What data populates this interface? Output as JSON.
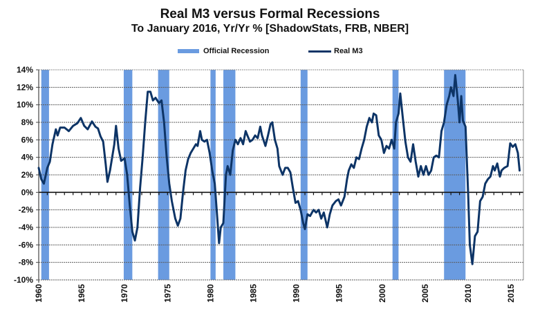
{
  "chart_data": {
    "type": "line",
    "title": "Real M3 versus Formal Recessions",
    "subtitle": "To January 2016, Yr/Yr % [ShadowStats, FRB, NBER]",
    "xlabel": "",
    "ylabel": "",
    "xlim": [
      1960,
      2016.2
    ],
    "ylim": [
      -10,
      14
    ],
    "y_ticks": [
      "-10%",
      "-8%",
      "-6%",
      "-4%",
      "-2%",
      "0%",
      "2%",
      "4%",
      "6%",
      "8%",
      "10%",
      "12%",
      "14%"
    ],
    "y_tick_values": [
      -10,
      -8,
      -6,
      -4,
      -2,
      0,
      2,
      4,
      6,
      8,
      10,
      12,
      14
    ],
    "x_ticks": [
      "1960",
      "1965",
      "1970",
      "1975",
      "1980",
      "1985",
      "1990",
      "1995",
      "2000",
      "2005",
      "2010",
      "2015"
    ],
    "x_tick_values": [
      1960,
      1965,
      1970,
      1975,
      1980,
      1985,
      1990,
      1995,
      2000,
      2005,
      2010,
      2015
    ],
    "grid": true,
    "legend": {
      "position": "top-center",
      "entries": [
        {
          "label": "Official Recession",
          "type": "band",
          "color": "#6a9be0"
        },
        {
          "label": "Real M3",
          "type": "line",
          "color": "#0d3466"
        }
      ]
    },
    "recessions": [
      {
        "start": 1960.3,
        "end": 1961.2
      },
      {
        "start": 1969.9,
        "end": 1970.9
      },
      {
        "start": 1973.9,
        "end": 1975.2
      },
      {
        "start": 1980.0,
        "end": 1980.6
      },
      {
        "start": 1981.5,
        "end": 1982.9
      },
      {
        "start": 1990.5,
        "end": 1991.3
      },
      {
        "start": 2001.2,
        "end": 2001.9
      },
      {
        "start": 2007.2,
        "end": 2009.7
      }
    ],
    "series": [
      {
        "name": "Real M3",
        "color": "#0d3466",
        "x": [
          1960.0,
          1960.3,
          1960.6,
          1961.0,
          1961.3,
          1961.6,
          1962.0,
          1962.2,
          1962.5,
          1963.0,
          1963.5,
          1964.0,
          1964.5,
          1964.9,
          1965.3,
          1965.7,
          1966.2,
          1966.6,
          1966.9,
          1967.2,
          1967.5,
          1967.8,
          1968.0,
          1968.3,
          1968.8,
          1969.0,
          1969.3,
          1969.6,
          1970.0,
          1970.3,
          1970.6,
          1970.9,
          1971.2,
          1971.5,
          1971.8,
          1972.1,
          1972.4,
          1972.7,
          1973.0,
          1973.3,
          1973.6,
          1974.0,
          1974.3,
          1974.6,
          1974.9,
          1975.2,
          1975.5,
          1975.9,
          1976.2,
          1976.5,
          1976.8,
          1977.1,
          1977.4,
          1977.7,
          1978.0,
          1978.3,
          1978.5,
          1978.8,
          1979.0,
          1979.3,
          1979.6,
          1979.9,
          1980.2,
          1980.5,
          1980.8,
          1981.0,
          1981.2,
          1981.5,
          1981.8,
          1982.0,
          1982.3,
          1982.6,
          1982.9,
          1983.2,
          1983.5,
          1983.8,
          1984.1,
          1984.3,
          1984.6,
          1984.9,
          1985.2,
          1985.5,
          1985.8,
          1986.0,
          1986.4,
          1986.7,
          1987.0,
          1987.2,
          1987.5,
          1987.8,
          1988.0,
          1988.4,
          1988.7,
          1989.0,
          1989.3,
          1989.6,
          1989.9,
          1990.2,
          1990.5,
          1990.8,
          1991.0,
          1991.3,
          1991.6,
          1992.0,
          1992.3,
          1992.6,
          1992.9,
          1993.2,
          1993.6,
          1993.9,
          1994.2,
          1994.6,
          1994.9,
          1995.2,
          1995.6,
          1995.9,
          1996.1,
          1996.4,
          1996.7,
          1997.0,
          1997.3,
          1997.6,
          1997.9,
          1998.2,
          1998.5,
          1998.8,
          1999.0,
          1999.3,
          1999.6,
          1999.9,
          2000.2,
          2000.5,
          2000.8,
          2001.1,
          2001.4,
          2001.6,
          2001.9,
          2002.1,
          2002.4,
          2002.7,
          2003.0,
          2003.3,
          2003.6,
          2003.9,
          2004.2,
          2004.5,
          2004.8,
          2005.1,
          2005.4,
          2005.7,
          2006.0,
          2006.3,
          2006.6,
          2006.9,
          2007.2,
          2007.5,
          2007.8,
          2008.0,
          2008.3,
          2008.5,
          2008.8,
          2009.0,
          2009.2,
          2009.4,
          2009.7,
          2010.0,
          2010.2,
          2010.5,
          2010.8,
          2011.1,
          2011.4,
          2011.7,
          2012.0,
          2012.3,
          2012.6,
          2012.9,
          2013.1,
          2013.4,
          2013.7,
          2013.9,
          2014.2,
          2014.6,
          2014.9,
          2015.2,
          2015.5,
          2015.8,
          2016.0
        ],
        "values": [
          2.8,
          1.5,
          1.0,
          2.8,
          3.5,
          5.5,
          7.2,
          6.5,
          7.4,
          7.4,
          7.0,
          7.6,
          7.9,
          8.5,
          7.6,
          7.2,
          8.1,
          7.5,
          7.3,
          6.4,
          5.8,
          3.2,
          1.2,
          2.5,
          5.5,
          7.6,
          5.0,
          3.6,
          3.9,
          2.0,
          -1.5,
          -4.5,
          -5.5,
          -4.0,
          0.5,
          4.0,
          8.0,
          11.5,
          11.5,
          10.5,
          10.8,
          10.2,
          10.5,
          8.0,
          4.0,
          1.0,
          -1.0,
          -3.0,
          -3.8,
          -3.0,
          0.0,
          2.5,
          3.8,
          4.5,
          5.0,
          5.5,
          5.3,
          7.0,
          6.0,
          5.8,
          6.0,
          4.5,
          2.5,
          1.0,
          -3.0,
          -5.8,
          -4.0,
          -3.5,
          2.0,
          3.0,
          2.0,
          4.8,
          6.0,
          5.5,
          6.2,
          5.5,
          7.0,
          6.5,
          5.8,
          6.0,
          6.5,
          6.2,
          7.5,
          6.5,
          5.3,
          6.5,
          7.8,
          8.0,
          6.0,
          5.0,
          3.0,
          2.0,
          2.8,
          2.8,
          2.3,
          0.5,
          -1.2,
          -1.0,
          -2.0,
          -3.5,
          -4.2,
          -2.5,
          -2.7,
          -2.0,
          -2.3,
          -2.0,
          -3.0,
          -2.3,
          -4.0,
          -2.5,
          -1.5,
          -1.0,
          -0.8,
          -1.5,
          -0.5,
          1.5,
          2.5,
          3.2,
          2.8,
          4.0,
          3.8,
          5.0,
          6.0,
          7.5,
          8.5,
          8.0,
          9.0,
          8.8,
          6.5,
          6.0,
          4.5,
          5.3,
          5.0,
          6.0,
          5.0,
          8.0,
          9.0,
          11.3,
          8.5,
          5.8,
          4.0,
          3.5,
          5.5,
          3.5,
          1.8,
          3.0,
          2.0,
          3.0,
          2.0,
          2.5,
          4.0,
          4.2,
          4.0,
          7.0,
          8.0,
          10.0,
          11.0,
          12.0,
          11.0,
          13.4,
          10.5,
          8.0,
          11.0,
          8.2,
          7.5,
          0.0,
          -6.0,
          -8.2,
          -5.0,
          -4.5,
          -1.0,
          -0.5,
          1.0,
          1.5,
          1.8,
          3.0,
          2.5,
          3.3,
          1.8,
          2.5,
          2.8,
          3.0,
          5.6,
          5.2,
          5.5,
          4.5,
          2.5
        ]
      }
    ]
  }
}
